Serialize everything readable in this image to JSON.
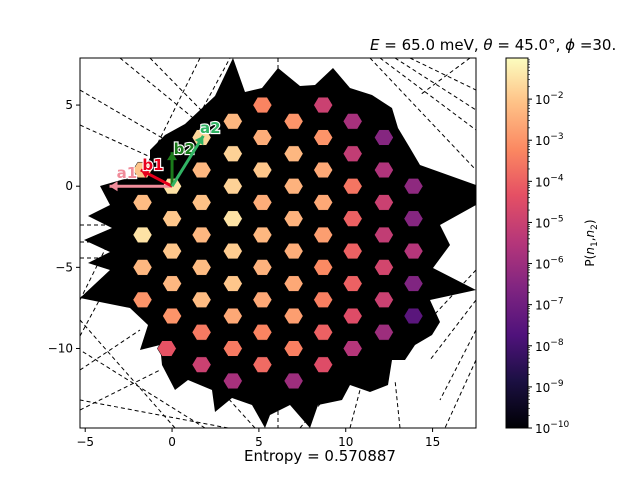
{
  "chart_data": {
    "type": "heatmap",
    "title": "E = 65.0 meV, θ = 45.0°, ϕ =30.",
    "title_parts": {
      "e_label": "E",
      "e_value": " = 65.0 meV, ",
      "theta_label": "θ",
      "theta_value": " = 45.0°, ",
      "phi_label": "ϕ",
      "phi_value": " =30."
    },
    "xlim": [
      -5.3,
      17.5
    ],
    "ylim": [
      -14.9,
      7.9
    ],
    "xticks": [
      -5,
      0,
      5,
      10,
      15
    ],
    "yticks": [
      5,
      0,
      -5,
      -10
    ],
    "xticklabels": [
      "−5",
      "0",
      "5",
      "10",
      "15"
    ],
    "yticklabels": [
      "5",
      "0",
      "−5",
      "−10"
    ],
    "colorbar": {
      "label": "P(n1,n2)",
      "label_parts": {
        "p": "P(",
        "n1": "n",
        "sub1": "1",
        "comma": ",",
        "n2": "n",
        "sub2": "2",
        "close": ")"
      },
      "scale": "log",
      "range": [
        1e-10,
        0.1
      ],
      "ticks": [
        {
          "base": "10",
          "exp": "−2",
          "log": -2
        },
        {
          "base": "10",
          "exp": "−3",
          "log": -3
        },
        {
          "base": "10",
          "exp": "−4",
          "log": -4
        },
        {
          "base": "10",
          "exp": "−5",
          "log": -5
        },
        {
          "base": "10",
          "exp": "−6",
          "log": -6
        },
        {
          "base": "10",
          "exp": "−7",
          "log": -7
        },
        {
          "base": "10",
          "exp": "−8",
          "log": -8
        },
        {
          "base": "10",
          "exp": "−9",
          "log": -9
        },
        {
          "base": "10",
          "exp": "−10",
          "log": -10
        }
      ]
    },
    "vectors": [
      {
        "name": "a1",
        "label": "a1",
        "color": "#f08c9a",
        "from": [
          0,
          0
        ],
        "to": [
          -3.6,
          0
        ],
        "label_at": [
          -2.6,
          0.8
        ]
      },
      {
        "name": "b1",
        "label": "b1",
        "color": "#e8001c",
        "from": [
          0,
          0
        ],
        "to": [
          -1.8,
          1.0
        ],
        "label_at": [
          -1.1,
          1.3
        ]
      },
      {
        "name": "b2",
        "label": "b2",
        "color": "#1b7a1b",
        "from": [
          0,
          0
        ],
        "to": [
          0,
          2.1
        ],
        "label_at": [
          0.7,
          2.3
        ]
      },
      {
        "name": "a2",
        "label": "a2",
        "color": "#31b464",
        "from": [
          0,
          0
        ],
        "to": [
          1.8,
          3.1
        ],
        "label_at": [
          2.2,
          3.6
        ]
      }
    ],
    "points": [
      {
        "x": 0,
        "y": 0,
        "logp": -1.5
      },
      {
        "x": -1.7,
        "y": 1.0,
        "logp": -2.0
      },
      {
        "x": 1.7,
        "y": 1.0,
        "logp": -2.3
      },
      {
        "x": 1.7,
        "y": 3.0,
        "logp": -1.7
      },
      {
        "x": 3.5,
        "y": 2.0,
        "logp": -1.8
      },
      {
        "x": 3.5,
        "y": 4.0,
        "logp": -2.3
      },
      {
        "x": 5.2,
        "y": 5.0,
        "logp": -3.3
      },
      {
        "x": 5.2,
        "y": 3.0,
        "logp": -2.5
      },
      {
        "x": 5.2,
        "y": 1.0,
        "logp": -2.0
      },
      {
        "x": 7.0,
        "y": 4.0,
        "logp": -3.0
      },
      {
        "x": 7.0,
        "y": 2.0,
        "logp": -2.3
      },
      {
        "x": 7.0,
        "y": 0.0,
        "logp": -2.4
      },
      {
        "x": 8.7,
        "y": 5.0,
        "logp": -5.0
      },
      {
        "x": 8.7,
        "y": 3.0,
        "logp": -3.0
      },
      {
        "x": 8.7,
        "y": 1.0,
        "logp": -2.6
      },
      {
        "x": 10.4,
        "y": 4.0,
        "logp": -5.8
      },
      {
        "x": 10.4,
        "y": 2.0,
        "logp": -5.2
      },
      {
        "x": 10.4,
        "y": 0.0,
        "logp": -3.6
      },
      {
        "x": 12.2,
        "y": 3.0,
        "logp": -6.5
      },
      {
        "x": 12.2,
        "y": 1.0,
        "logp": -5.6
      },
      {
        "x": 12.2,
        "y": -1.0,
        "logp": -5.0
      },
      {
        "x": 13.9,
        "y": 0.0,
        "logp": -6.3
      },
      {
        "x": 13.9,
        "y": -2.0,
        "logp": -6.5
      },
      {
        "x": -1.7,
        "y": -1.0,
        "logp": -2.2
      },
      {
        "x": 1.7,
        "y": -1.0,
        "logp": -2.1
      },
      {
        "x": 3.5,
        "y": 0.0,
        "logp": -1.8
      },
      {
        "x": -1.7,
        "y": -3.0,
        "logp": -1.5
      },
      {
        "x": 0,
        "y": -2.0,
        "logp": -2.0
      },
      {
        "x": 1.7,
        "y": -3.0,
        "logp": -2.3
      },
      {
        "x": 3.5,
        "y": -2.0,
        "logp": -1.5
      },
      {
        "x": 5.2,
        "y": -1.0,
        "logp": -2.5
      },
      {
        "x": 7.0,
        "y": -2.0,
        "logp": -2.4
      },
      {
        "x": 8.7,
        "y": -1.0,
        "logp": -2.6
      },
      {
        "x": 10.4,
        "y": -2.0,
        "logp": -4.0
      },
      {
        "x": 12.2,
        "y": -3.0,
        "logp": -5.2
      },
      {
        "x": 13.9,
        "y": -4.0,
        "logp": -5.5
      },
      {
        "x": -1.7,
        "y": -5.0,
        "logp": -2.3
      },
      {
        "x": 0,
        "y": -4.0,
        "logp": -2.0
      },
      {
        "x": 1.7,
        "y": -5.0,
        "logp": -2.2
      },
      {
        "x": 3.5,
        "y": -4.0,
        "logp": -1.9
      },
      {
        "x": 5.2,
        "y": -3.0,
        "logp": -2.3
      },
      {
        "x": 7.0,
        "y": -4.0,
        "logp": -2.5
      },
      {
        "x": 8.7,
        "y": -3.0,
        "logp": -2.8
      },
      {
        "x": 10.4,
        "y": -4.0,
        "logp": -4.0
      },
      {
        "x": 12.2,
        "y": -5.0,
        "logp": -4.8
      },
      {
        "x": 13.9,
        "y": -6.0,
        "logp": -6.6
      },
      {
        "x": -1.7,
        "y": -7.0,
        "logp": -3.0
      },
      {
        "x": 0,
        "y": -6.0,
        "logp": -2.3
      },
      {
        "x": 1.7,
        "y": -7.0,
        "logp": -2.2
      },
      {
        "x": 3.5,
        "y": -6.0,
        "logp": -2.0
      },
      {
        "x": 5.2,
        "y": -5.0,
        "logp": -2.4
      },
      {
        "x": 7.0,
        "y": -6.0,
        "logp": -2.6
      },
      {
        "x": 8.7,
        "y": -5.0,
        "logp": -3.2
      },
      {
        "x": 10.4,
        "y": -6.0,
        "logp": -4.0
      },
      {
        "x": 12.2,
        "y": -7.0,
        "logp": -5.0
      },
      {
        "x": 13.9,
        "y": -8.0,
        "logp": -7.5
      },
      {
        "x": 0,
        "y": -8.0,
        "logp": -3.0
      },
      {
        "x": 1.7,
        "y": -9.0,
        "logp": -3.5
      },
      {
        "x": 3.5,
        "y": -8.0,
        "logp": -2.6
      },
      {
        "x": 5.2,
        "y": -7.0,
        "logp": -2.6
      },
      {
        "x": 7.0,
        "y": -8.0,
        "logp": -2.8
      },
      {
        "x": 8.7,
        "y": -7.0,
        "logp": -3.4
      },
      {
        "x": 10.4,
        "y": -8.0,
        "logp": -4.5
      },
      {
        "x": 12.2,
        "y": -9.0,
        "logp": -6.0
      },
      {
        "x": -0.3,
        "y": -10.0,
        "logp": -4.3
      },
      {
        "x": 1.7,
        "y": -11.0,
        "logp": -5.0
      },
      {
        "x": 3.5,
        "y": -10.0,
        "logp": -3.5
      },
      {
        "x": 5.2,
        "y": -9.0,
        "logp": -3.3
      },
      {
        "x": 7.0,
        "y": -10.0,
        "logp": -3.4
      },
      {
        "x": 8.7,
        "y": -9.0,
        "logp": -4.0
      },
      {
        "x": 10.4,
        "y": -10.0,
        "logp": -5.5
      },
      {
        "x": 3.5,
        "y": -12.0,
        "logp": -5.8
      },
      {
        "x": 5.2,
        "y": -11.0,
        "logp": -3.8
      },
      {
        "x": 7.0,
        "y": -12.0,
        "logp": -6.0
      },
      {
        "x": 8.7,
        "y": -11.0,
        "logp": -4.5
      }
    ],
    "annotation": "Entropy = 0.570887"
  }
}
